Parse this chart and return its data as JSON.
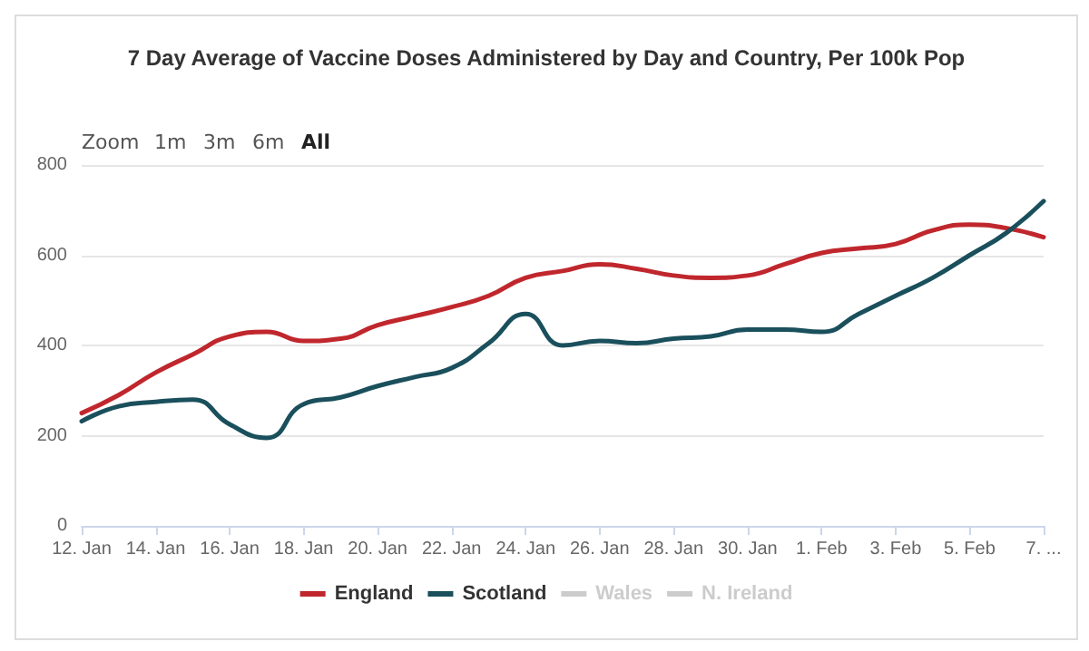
{
  "chart_data": {
    "type": "line",
    "title": "7 Day Average of Vaccine Doses Administered by Day and Country, Per 100k Pop",
    "x": [
      "--01-12",
      "--01-13",
      "--01-14",
      "--01-15",
      "--01-16",
      "--01-17",
      "--01-18",
      "--01-19",
      "--01-20",
      "--01-21",
      "--01-22",
      "--01-23",
      "--01-24",
      "--01-25",
      "--01-26",
      "--01-27",
      "--01-28",
      "--01-29",
      "--01-30",
      "--01-31",
      "--02-01",
      "--02-02",
      "--02-03",
      "--02-04",
      "--02-05",
      "--02-06",
      "--02-07"
    ],
    "series": [
      {
        "name": "England",
        "color": "#c0272d",
        "values": [
          250,
          290,
          340,
          380,
          420,
          430,
          410,
          415,
          445,
          465,
          485,
          510,
          550,
          565,
          580,
          570,
          555,
          550,
          555,
          580,
          605,
          615,
          625,
          655,
          668,
          660,
          640
        ]
      },
      {
        "name": "Scotland",
        "color": "#1a4f5c",
        "values": [
          232,
          265,
          275,
          280,
          225,
          195,
          270,
          285,
          310,
          330,
          350,
          405,
          470,
          400,
          410,
          405,
          415,
          420,
          435,
          435,
          430,
          470,
          510,
          550,
          600,
          650,
          720
        ]
      },
      {
        "name": "Wales",
        "color": "#cccccc",
        "values": [
          null,
          null,
          null,
          null,
          null,
          null,
          null,
          null,
          null,
          null,
          null,
          null,
          null,
          null,
          null,
          null,
          null,
          null,
          null,
          null,
          null,
          null,
          null,
          null,
          null,
          null,
          null
        ]
      },
      {
        "name": "N. Ireland",
        "color": "#cccccc",
        "values": [
          null,
          null,
          null,
          null,
          null,
          null,
          null,
          null,
          null,
          null,
          null,
          null,
          null,
          null,
          null,
          null,
          null,
          null,
          null,
          null,
          null,
          null,
          null,
          null,
          null,
          null,
          null
        ]
      }
    ],
    "xlim": [
      "--01-12",
      "--02-07"
    ],
    "xticks": [
      {
        "value": "--01-12",
        "label": "12. Jan"
      },
      {
        "value": "--01-14",
        "label": "14. Jan"
      },
      {
        "value": "--01-16",
        "label": "16. Jan"
      },
      {
        "value": "--01-18",
        "label": "18. Jan"
      },
      {
        "value": "--01-20",
        "label": "20. Jan"
      },
      {
        "value": "--01-22",
        "label": "22. Jan"
      },
      {
        "value": "--01-24",
        "label": "24. Jan"
      },
      {
        "value": "--01-26",
        "label": "26. Jan"
      },
      {
        "value": "--01-28",
        "label": "28. Jan"
      },
      {
        "value": "--01-30",
        "label": "30. Jan"
      },
      {
        "value": "--02-01",
        "label": "1. Feb"
      },
      {
        "value": "--02-03",
        "label": "3. Feb"
      },
      {
        "value": "--02-05",
        "label": "5. Feb"
      },
      {
        "value": "--02-07",
        "label": "7. ..."
      }
    ],
    "ylim": [
      0,
      800
    ],
    "yticks": [
      0,
      200,
      400,
      600,
      800
    ],
    "grid": "y",
    "legend": "bottom",
    "marker": "none",
    "line_style": "solid",
    "annotations": [
      "Zoom",
      "1m",
      "3m",
      "6m",
      "All"
    ]
  }
}
